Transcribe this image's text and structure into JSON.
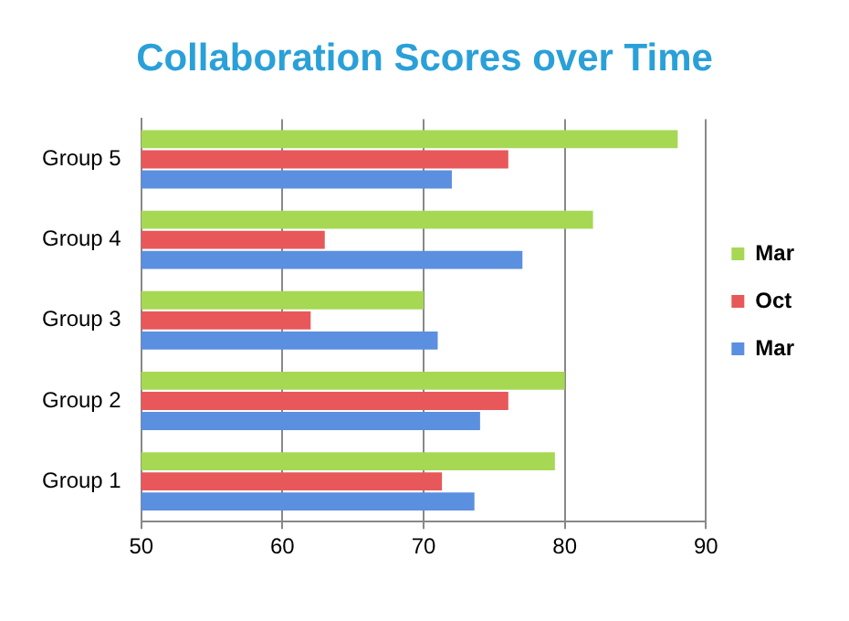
{
  "chart_data": {
    "type": "bar",
    "orientation": "horizontal",
    "title": "Collaboration Scores over Time",
    "categories": [
      "Group 5",
      "Group 4",
      "Group 3",
      "Group 2",
      "Group 1"
    ],
    "series": [
      {
        "name": "Mar",
        "color": "#a6d854",
        "values": [
          88,
          82,
          70,
          80,
          79.3
        ]
      },
      {
        "name": "Oct",
        "color": "#e8585a",
        "values": [
          76,
          63,
          62,
          76,
          71.3
        ]
      },
      {
        "name": "Mar",
        "color": "#5b8fe0",
        "values": [
          72,
          77,
          71,
          74,
          73.6
        ]
      }
    ],
    "xlim": [
      50,
      90
    ],
    "xticks": [
      50,
      60,
      70,
      80,
      90
    ],
    "grid": "x",
    "legend": "right"
  }
}
